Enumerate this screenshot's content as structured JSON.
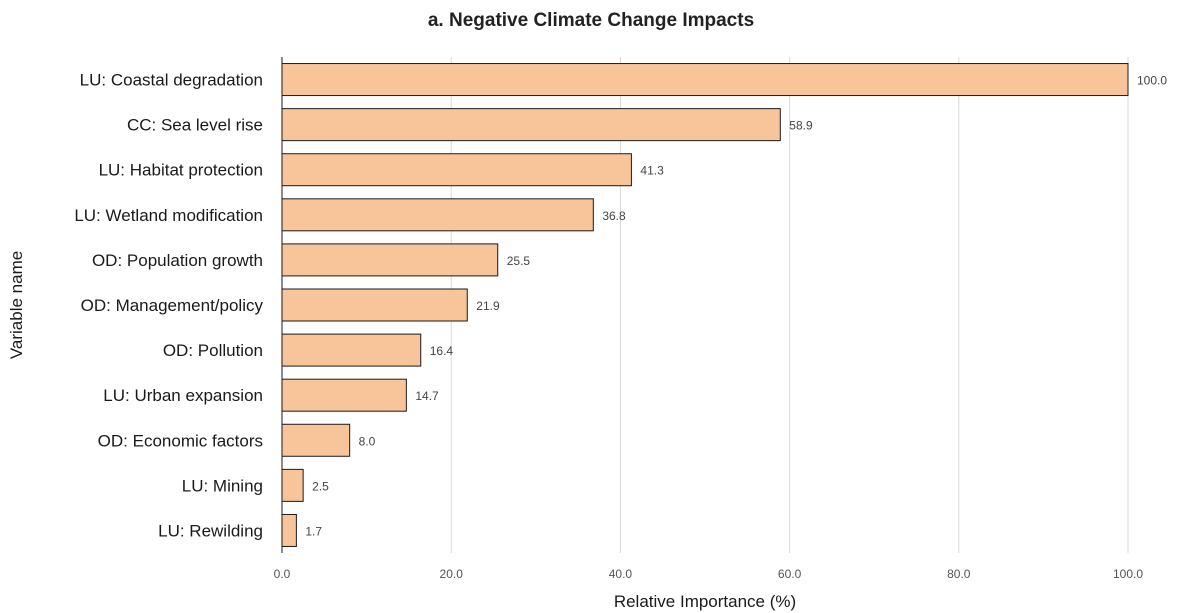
{
  "chart_data": {
    "type": "bar",
    "orientation": "horizontal",
    "title": "a. Negative Climate Change Impacts",
    "xlabel": "Relative Importance (%)",
    "ylabel": "Variable name",
    "categories": [
      "LU: Coastal degradation",
      "CC: Sea level rise",
      "LU: Habitat protection",
      "LU: Wetland modification",
      "OD: Population growth",
      "OD: Management/policy",
      "OD: Pollution",
      "LU: Urban expansion",
      "OD: Economic factors",
      "LU: Mining",
      "LU: Rewilding"
    ],
    "values": [
      100.0,
      58.9,
      41.3,
      36.8,
      25.5,
      21.9,
      16.4,
      14.7,
      8.0,
      2.5,
      1.7
    ],
    "data_labels": [
      "100.0",
      "58.9",
      "41.3",
      "36.8",
      "25.5",
      "21.9",
      "16.4",
      "14.7",
      "8.0",
      "2.5",
      "1.7"
    ],
    "xlim": [
      0,
      100
    ],
    "xticks": [
      0,
      20,
      40,
      60,
      80,
      100
    ],
    "xtick_labels": [
      "0.0",
      "20.0",
      "40.0",
      "60.0",
      "80.0",
      "100.0"
    ],
    "grid": "vertical",
    "legend": "none",
    "bar_color": "#f8c49a",
    "bar_edge_color": "#1a1a1a"
  }
}
